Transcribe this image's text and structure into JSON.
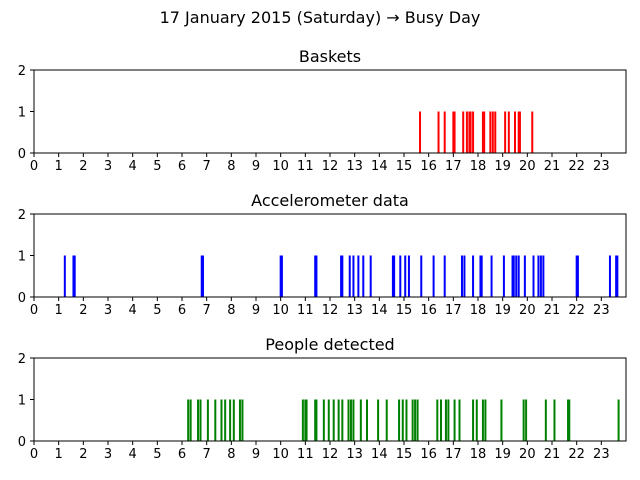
{
  "figure_title": "17 January 2015 (Saturday) → Busy Day",
  "chart_data": [
    {
      "type": "bar",
      "title": "Baskets",
      "xlabel": "",
      "ylabel": "",
      "color": "#ff0000",
      "xlim": [
        0,
        24
      ],
      "ylim": [
        0,
        2
      ],
      "xticks": [
        0,
        1,
        2,
        3,
        4,
        5,
        6,
        7,
        8,
        9,
        10,
        11,
        12,
        13,
        14,
        15,
        16,
        17,
        18,
        19,
        20,
        21,
        22,
        23
      ],
      "yticks": [
        0,
        1,
        2
      ],
      "events_hour": [
        15.65,
        16.4,
        16.65,
        17.0,
        17.05,
        17.4,
        17.55,
        17.65,
        17.7,
        17.8,
        18.2,
        18.25,
        18.5,
        18.6,
        18.7,
        19.1,
        19.25,
        19.5,
        19.65,
        19.7,
        20.2
      ],
      "value": 1
    },
    {
      "type": "bar",
      "title": "Accelerometer data",
      "xlabel": "",
      "ylabel": "",
      "color": "#0000ff",
      "xlim": [
        0,
        24
      ],
      "ylim": [
        0,
        2
      ],
      "xticks": [
        0,
        1,
        2,
        3,
        4,
        5,
        6,
        7,
        8,
        9,
        10,
        11,
        12,
        13,
        14,
        15,
        16,
        17,
        18,
        19,
        20,
        21,
        22,
        23
      ],
      "yticks": [
        0,
        1,
        2
      ],
      "events_hour": [
        1.25,
        1.6,
        1.65,
        6.8,
        6.85,
        10.0,
        10.05,
        11.4,
        11.45,
        12.45,
        12.5,
        12.8,
        12.95,
        13.15,
        13.35,
        13.65,
        14.55,
        14.6,
        14.85,
        15.05,
        15.2,
        15.7,
        16.2,
        16.65,
        17.35,
        17.45,
        17.8,
        18.1,
        18.15,
        18.55,
        19.05,
        19.4,
        19.45,
        19.55,
        19.65,
        19.9,
        20.25,
        20.45,
        20.55,
        20.65,
        22.0,
        22.05,
        23.35,
        23.6,
        23.65
      ],
      "value": 1
    },
    {
      "type": "bar",
      "title": "People detected",
      "xlabel": "",
      "ylabel": "",
      "color": "#008000",
      "xlim": [
        0,
        24
      ],
      "ylim": [
        0,
        2
      ],
      "xticks": [
        0,
        1,
        2,
        3,
        4,
        5,
        6,
        7,
        8,
        9,
        10,
        11,
        12,
        13,
        14,
        15,
        16,
        17,
        18,
        19,
        20,
        21,
        22,
        23
      ],
      "yticks": [
        0,
        1,
        2
      ],
      "events_hour": [
        6.25,
        6.35,
        6.65,
        6.75,
        7.05,
        7.35,
        7.6,
        7.75,
        7.95,
        8.1,
        8.35,
        8.45,
        10.9,
        11.0,
        11.05,
        11.4,
        11.45,
        11.75,
        11.95,
        12.15,
        12.35,
        12.5,
        12.75,
        12.85,
        12.95,
        13.25,
        13.5,
        13.95,
        14.3,
        14.8,
        14.95,
        15.1,
        15.35,
        15.45,
        15.55,
        16.35,
        16.5,
        16.7,
        16.8,
        17.05,
        17.25,
        17.8,
        17.95,
        18.2,
        18.3,
        18.95,
        19.85,
        19.95,
        20.75,
        21.1,
        21.65,
        21.7,
        23.7
      ],
      "value": 1
    }
  ]
}
